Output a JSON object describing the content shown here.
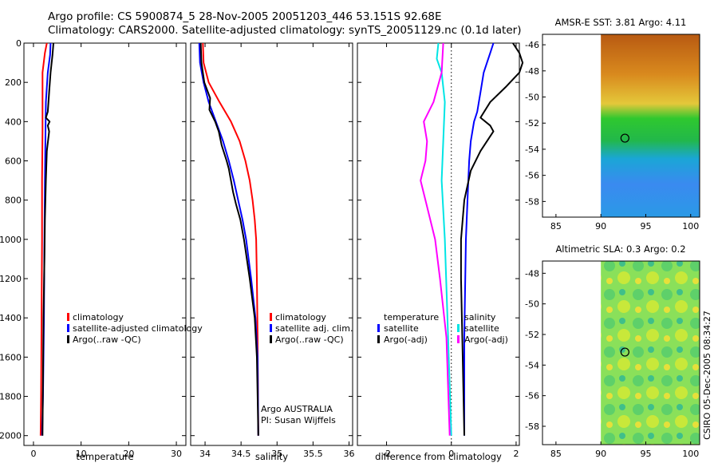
{
  "header": {
    "title_line1": "Argo profile: CS 5900874_5 28-Nov-2005 20051203_446 53.151S 92.68E",
    "title_line2": "Climatology: CARS2000. Satellite-adjusted climatology: synTS_20051129.nc (0.1d later)"
  },
  "colors": {
    "climatology": "#ff0000",
    "satellite": "#0000ff",
    "argo": "#000000",
    "argo_adj_salinity": "#ff00ff",
    "satellite_salinity": "#00e5e5"
  },
  "chart_data": [
    {
      "id": "temperature",
      "type": "line",
      "xlabel": "temperature",
      "ylim": [
        2050,
        0
      ],
      "xlim": [
        -2,
        32
      ],
      "xticks": [
        0,
        10,
        20,
        30
      ],
      "yticks": [
        0,
        200,
        400,
        600,
        800,
        1000,
        1200,
        1400,
        1600,
        1800,
        2000
      ],
      "legend": [
        "climatology",
        "satellite-adjusted climatology",
        "Argo(..raw -QC)"
      ],
      "series": [
        {
          "name": "climatology",
          "color": "#ff0000",
          "points": [
            [
              2.8,
              0
            ],
            [
              2.4,
              50
            ],
            [
              1.9,
              150
            ],
            [
              1.9,
              300
            ],
            [
              1.9,
              450
            ],
            [
              1.8,
              700
            ],
            [
              1.8,
              1000
            ],
            [
              1.7,
              1400
            ],
            [
              1.6,
              1800
            ],
            [
              1.5,
              2000
            ]
          ]
        },
        {
          "name": "satellite-adjusted climatology",
          "color": "#0000ff",
          "points": [
            [
              3.6,
              0
            ],
            [
              3.5,
              60
            ],
            [
              3.0,
              150
            ],
            [
              2.6,
              300
            ],
            [
              2.5,
              500
            ],
            [
              2.4,
              700
            ],
            [
              2.3,
              1000
            ],
            [
              2.2,
              1400
            ],
            [
              2.0,
              1800
            ],
            [
              1.8,
              2000
            ]
          ]
        },
        {
          "name": "Argo(..raw -QC)",
          "color": "#000000",
          "points": [
            [
              4.2,
              0
            ],
            [
              4.0,
              60
            ],
            [
              3.6,
              150
            ],
            [
              3.3,
              250
            ],
            [
              3.0,
              350
            ],
            [
              2.6,
              380
            ],
            [
              3.4,
              400
            ],
            [
              3.0,
              420
            ],
            [
              3.3,
              450
            ],
            [
              2.8,
              550
            ],
            [
              2.6,
              700
            ],
            [
              2.4,
              900
            ],
            [
              2.3,
              1100
            ],
            [
              2.1,
              1400
            ],
            [
              2.0,
              1700
            ],
            [
              1.9,
              2000
            ]
          ]
        }
      ]
    },
    {
      "id": "salinity",
      "type": "line",
      "xlabel": "salinity",
      "ylim": [
        2050,
        0
      ],
      "xlim": [
        33.8,
        36.05
      ],
      "xticks": [
        34,
        34.5,
        35,
        35.5,
        36
      ],
      "legend": [
        "climatology",
        "satellite adj. clim.",
        "Argo(..raw -QC)"
      ],
      "annotations": [
        "Argo AUSTRALIA",
        "PI: Susan Wijffels"
      ],
      "series": [
        {
          "name": "climatology",
          "color": "#ff0000",
          "points": [
            [
              33.97,
              0
            ],
            [
              33.98,
              100
            ],
            [
              34.05,
              200
            ],
            [
              34.2,
              300
            ],
            [
              34.36,
              400
            ],
            [
              34.48,
              500
            ],
            [
              34.56,
              600
            ],
            [
              34.62,
              700
            ],
            [
              34.66,
              800
            ],
            [
              34.69,
              900
            ],
            [
              34.71,
              1000
            ],
            [
              34.72,
              1200
            ],
            [
              34.73,
              1500
            ],
            [
              34.74,
              2000
            ]
          ]
        },
        {
          "name": "satellite adj. clim.",
          "color": "#0000ff",
          "points": [
            [
              33.92,
              0
            ],
            [
              33.93,
              100
            ],
            [
              33.98,
              200
            ],
            [
              34.05,
              300
            ],
            [
              34.15,
              400
            ],
            [
              34.25,
              500
            ],
            [
              34.33,
              600
            ],
            [
              34.4,
              700
            ],
            [
              34.46,
              800
            ],
            [
              34.52,
              900
            ],
            [
              34.57,
              1000
            ],
            [
              34.64,
              1200
            ],
            [
              34.7,
              1400
            ],
            [
              34.73,
              1600
            ],
            [
              34.74,
              2000
            ]
          ]
        },
        {
          "name": "Argo(..raw -QC)",
          "color": "#000000",
          "points": [
            [
              33.94,
              0
            ],
            [
              33.95,
              100
            ],
            [
              33.99,
              200
            ],
            [
              34.07,
              280
            ],
            [
              34.06,
              340
            ],
            [
              34.14,
              400
            ],
            [
              34.19,
              450
            ],
            [
              34.23,
              520
            ],
            [
              34.3,
              600
            ],
            [
              34.33,
              640
            ],
            [
              34.36,
              700
            ],
            [
              34.39,
              760
            ],
            [
              34.43,
              820
            ],
            [
              34.49,
              900
            ],
            [
              34.54,
              1000
            ],
            [
              34.62,
              1200
            ],
            [
              34.69,
              1400
            ],
            [
              34.72,
              1600
            ],
            [
              34.74,
              2000
            ]
          ]
        }
      ]
    },
    {
      "id": "difference",
      "type": "line",
      "xlabel": "difference from climatology",
      "ylim": [
        2050,
        0
      ],
      "xlim": [
        -2.9,
        2.1
      ],
      "xticks": [
        -2,
        0,
        2
      ],
      "legend": [
        "temperature",
        "satellite",
        "Argo(-adj)",
        "salinity",
        "satellite",
        "Argo(-adj)"
      ],
      "series": [
        {
          "name": "temperature satellite",
          "color": "#0000ff",
          "points": [
            [
              1.3,
              0
            ],
            [
              1.2,
              50
            ],
            [
              1.1,
              100
            ],
            [
              1.0,
              150
            ],
            [
              0.9,
              250
            ],
            [
              0.8,
              350
            ],
            [
              0.7,
              400
            ],
            [
              0.6,
              500
            ],
            [
              0.55,
              600
            ],
            [
              0.5,
              800
            ],
            [
              0.45,
              1000
            ],
            [
              0.4,
              1500
            ],
            [
              0.4,
              2000
            ]
          ]
        },
        {
          "name": "temperature Argo(-adj)",
          "color": "#000000",
          "points": [
            [
              1.9,
              0
            ],
            [
              2.1,
              50
            ],
            [
              2.2,
              100
            ],
            [
              2.1,
              150
            ],
            [
              1.7,
              220
            ],
            [
              1.2,
              300
            ],
            [
              0.9,
              380
            ],
            [
              1.2,
              420
            ],
            [
              1.3,
              450
            ],
            [
              0.9,
              550
            ],
            [
              0.6,
              650
            ],
            [
              0.4,
              800
            ],
            [
              0.3,
              1000
            ],
            [
              0.3,
              1200
            ],
            [
              0.35,
              1600
            ],
            [
              0.4,
              2000
            ]
          ]
        },
        {
          "name": "salinity satellite",
          "color": "#00e5e5",
          "points": [
            [
              -0.4,
              0
            ],
            [
              -0.45,
              80
            ],
            [
              -0.3,
              150
            ],
            [
              -0.2,
              300
            ],
            [
              -0.25,
              500
            ],
            [
              -0.3,
              700
            ],
            [
              -0.2,
              1000
            ],
            [
              -0.1,
              1500
            ],
            [
              0.0,
              2000
            ]
          ]
        },
        {
          "name": "salinity Argo(-adj)",
          "color": "#ff00ff",
          "points": [
            [
              -0.25,
              0
            ],
            [
              -0.3,
              150
            ],
            [
              -0.55,
              300
            ],
            [
              -0.85,
              400
            ],
            [
              -0.75,
              500
            ],
            [
              -0.8,
              600
            ],
            [
              -0.95,
              700
            ],
            [
              -0.8,
              800
            ],
            [
              -0.5,
              1000
            ],
            [
              -0.35,
              1200
            ],
            [
              -0.15,
              1500
            ],
            [
              -0.05,
              2000
            ]
          ]
        }
      ]
    }
  ],
  "maps": [
    {
      "id": "sst",
      "title": "AMSR-E SST: 3.81 Argo: 4.11",
      "xticks": [
        85,
        90,
        95,
        100
      ],
      "yticks": [
        -46,
        -48,
        -50,
        -52,
        -54,
        -56,
        -58
      ],
      "xlim": [
        83.5,
        101
      ],
      "ylim": [
        -59.2,
        -45.2
      ],
      "data_lon_min": 90,
      "argo_lon": 92.68,
      "argo_lat": -53.151
    },
    {
      "id": "sla",
      "title": "Altimetric SLA: 0.3 Argo: 0.2",
      "xticks": [
        85,
        90,
        95,
        100
      ],
      "yticks": [
        -48,
        -50,
        -52,
        -54,
        -56,
        -58
      ],
      "xlim": [
        83.5,
        101
      ],
      "ylim": [
        -59.2,
        -47.2
      ],
      "data_lon_min": 90,
      "argo_lon": 92.68,
      "argo_lat": -53.151
    }
  ],
  "footer": {
    "stamp": "CSIRO 05-Dec-2005 08:34:27"
  }
}
